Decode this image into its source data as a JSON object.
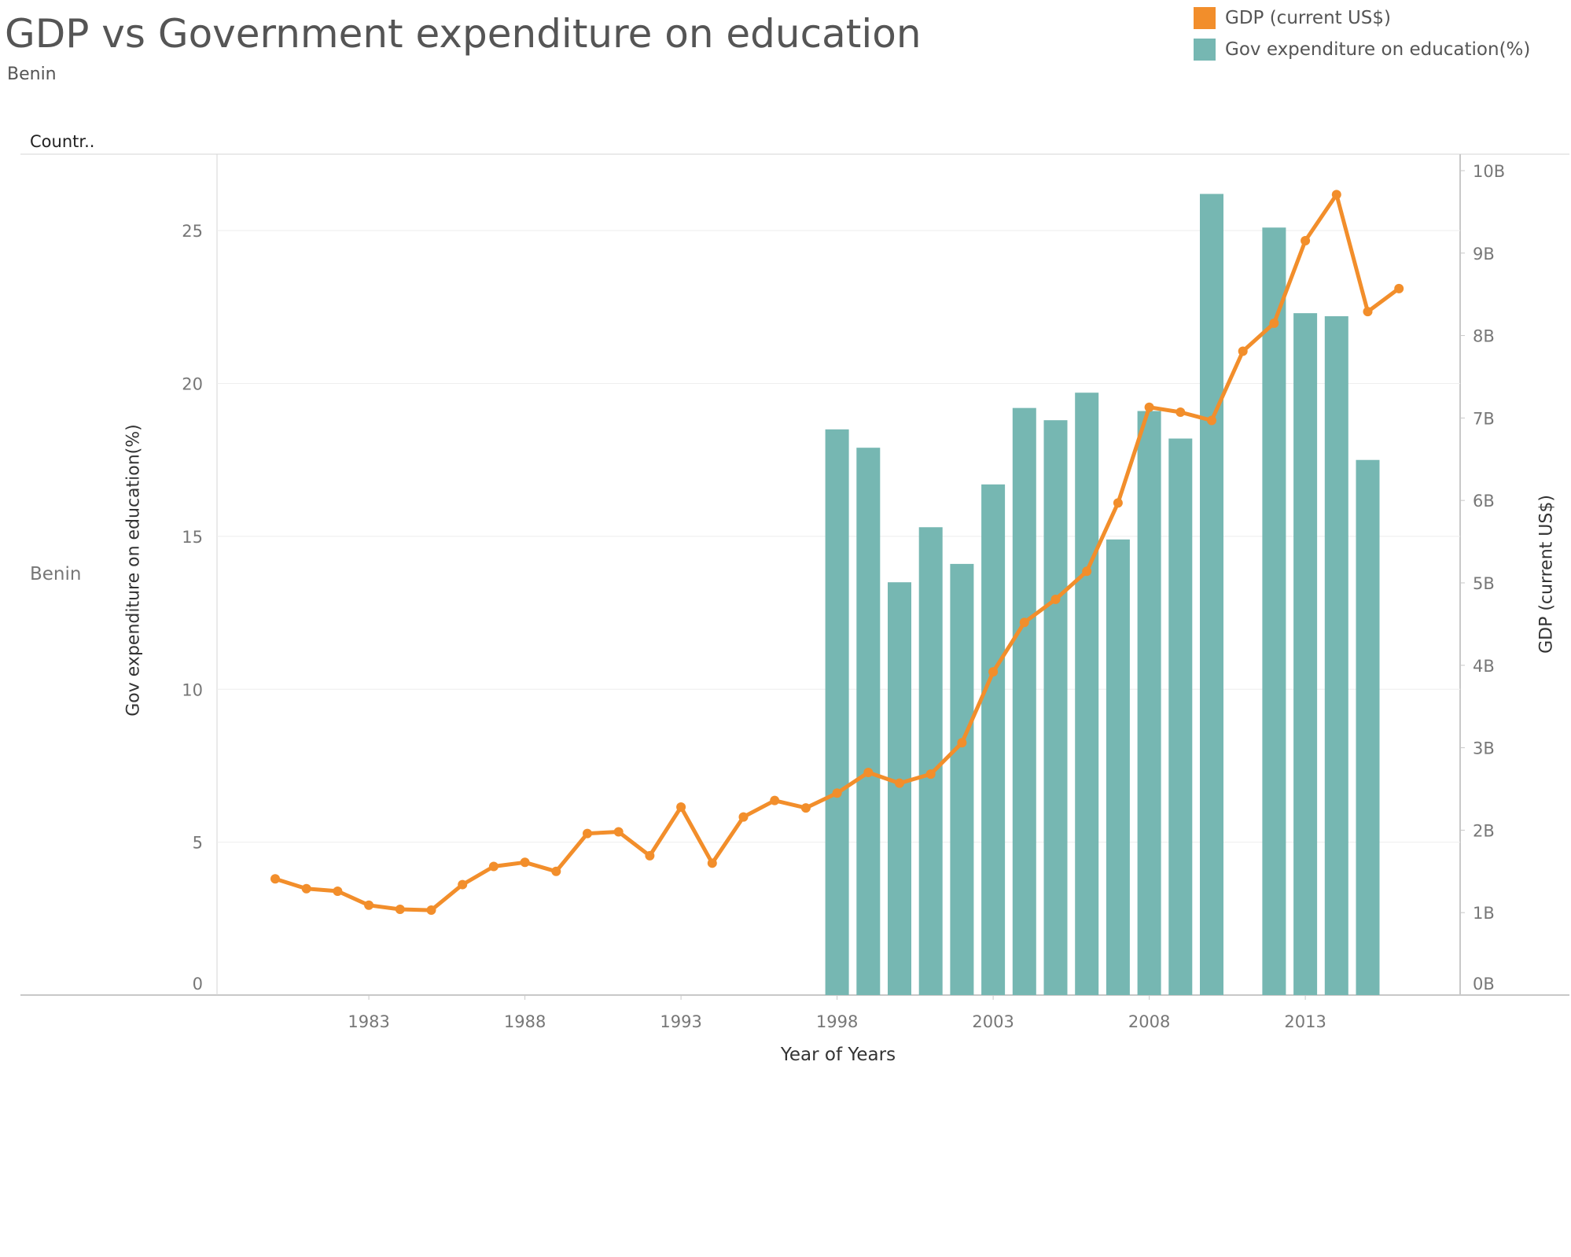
{
  "title": "GDP vs Government expenditure on education",
  "subtitle": "Benin",
  "header_label": "Countr..",
  "row_label": "Benin",
  "legend": [
    {
      "label": "GDP (current US$)",
      "color": "#F28E2B"
    },
    {
      "label": "Gov expenditure on education(%)",
      "color": "#76B7B2"
    }
  ],
  "chart_data": {
    "type": "bar",
    "title": "GDP vs Government expenditure on education",
    "xlabel": "Year of Years",
    "ylabel": "Gov expenditure on education(%)",
    "y2label": "GDP (current US$)",
    "xlim": [
      1979,
      2017
    ],
    "ylim": [
      0,
      27.5
    ],
    "y2lim": [
      0,
      10.2
    ],
    "x_ticks": [
      "1983",
      "1988",
      "1993",
      "1998",
      "2003",
      "2008",
      "2013"
    ],
    "y_ticks": [
      "0",
      "5",
      "10",
      "15",
      "20",
      "25"
    ],
    "y2_ticks": [
      "0B",
      "1B",
      "2B",
      "3B",
      "4B",
      "5B",
      "6B",
      "7B",
      "8B",
      "9B",
      "10B"
    ],
    "grid": true,
    "series": [
      {
        "name": "Gov expenditure on education(%)",
        "type": "bar",
        "axis": "left",
        "color": "#76B7B2",
        "x": [
          1998,
          1999,
          2000,
          2001,
          2002,
          2003,
          2004,
          2005,
          2006,
          2007,
          2008,
          2009,
          2010,
          2012,
          2013,
          2014,
          2015
        ],
        "values": [
          18.5,
          17.9,
          13.5,
          15.3,
          14.1,
          16.7,
          19.2,
          18.8,
          19.7,
          14.9,
          19.1,
          18.2,
          26.2,
          25.1,
          22.3,
          22.2,
          17.5
        ]
      },
      {
        "name": "GDP (current US$)",
        "type": "line",
        "axis": "right",
        "unit": "billion US$",
        "color": "#F28E2B",
        "x": [
          1980,
          1981,
          1982,
          1983,
          1984,
          1985,
          1986,
          1987,
          1988,
          1989,
          1990,
          1991,
          1992,
          1993,
          1994,
          1995,
          1996,
          1997,
          1998,
          1999,
          2000,
          2001,
          2002,
          2003,
          2004,
          2005,
          2006,
          2007,
          2008,
          2009,
          2010,
          2011,
          2012,
          2013,
          2014,
          2015,
          2016
        ],
        "values": [
          1.41,
          1.29,
          1.26,
          1.09,
          1.04,
          1.03,
          1.34,
          1.56,
          1.61,
          1.5,
          1.96,
          1.98,
          1.69,
          2.28,
          1.6,
          2.16,
          2.36,
          2.27,
          2.45,
          2.7,
          2.57,
          2.68,
          3.06,
          3.92,
          4.52,
          4.8,
          5.14,
          5.97,
          7.13,
          7.07,
          6.97,
          7.81,
          8.15,
          9.15,
          9.71,
          8.29,
          8.57
        ]
      }
    ]
  }
}
